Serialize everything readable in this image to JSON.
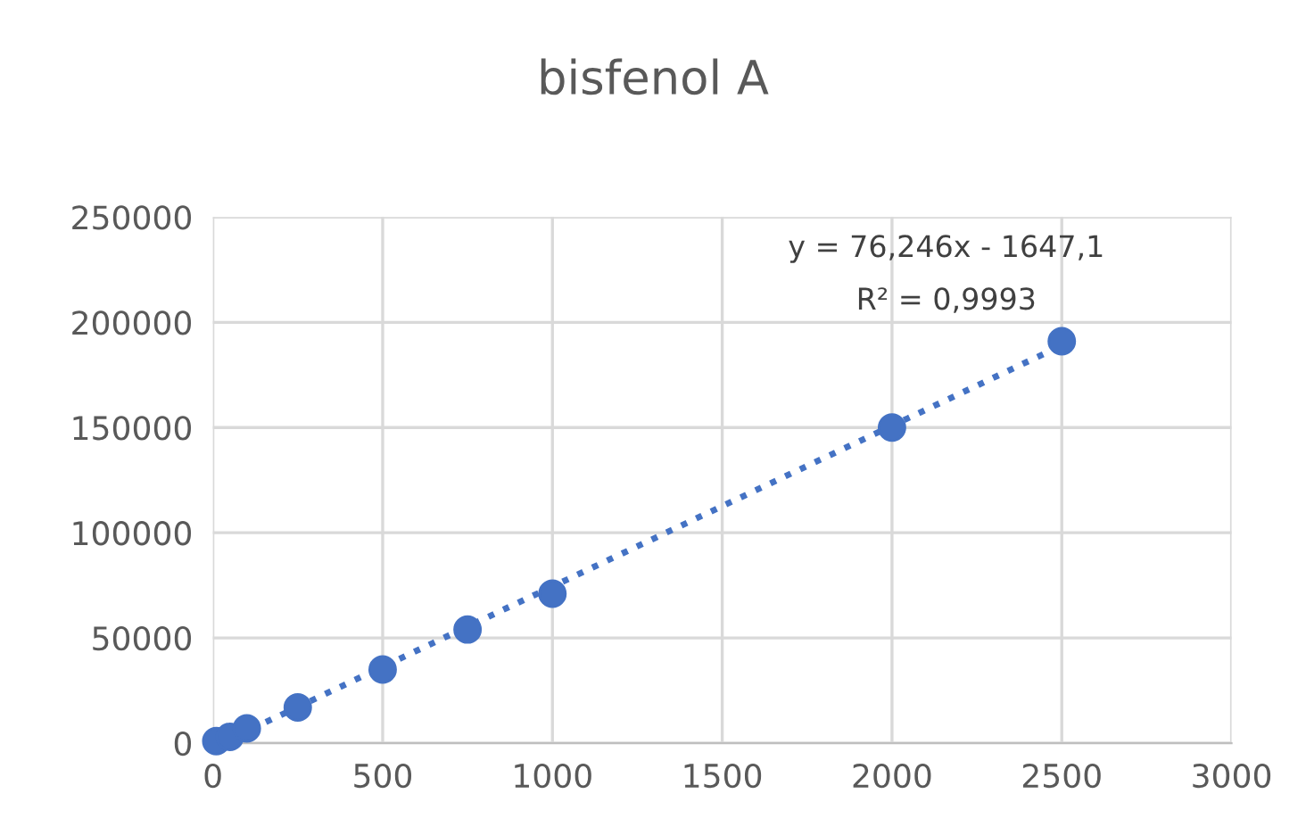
{
  "chart_data": {
    "type": "scatter",
    "title": "bisfenol A",
    "series": [
      {
        "color": "#4472c4",
        "x": [
          10,
          50,
          100,
          250,
          500,
          750,
          1000,
          2000,
          2500
        ],
        "values": [
          1000,
          3000,
          7000,
          17000,
          35000,
          54000,
          71000,
          150000,
          191000
        ],
        "marker": "circle"
      },
      {
        "type": "line",
        "color": "#4472c4",
        "x": [
          25,
          2500
        ],
        "values": [
          0,
          189000
        ],
        "line_style": "dotted"
      }
    ],
    "annotations": [
      "y = 76,246x - 1647,1",
      "R² = 0,9993"
    ],
    "xlim": [
      0,
      3000
    ],
    "xticks": [
      0,
      500,
      1000,
      1500,
      2000,
      2500,
      3000
    ],
    "ylim": [
      0,
      250000
    ],
    "yticks": [
      0,
      50000,
      100000,
      150000,
      200000,
      250000
    ],
    "grid": true
  }
}
